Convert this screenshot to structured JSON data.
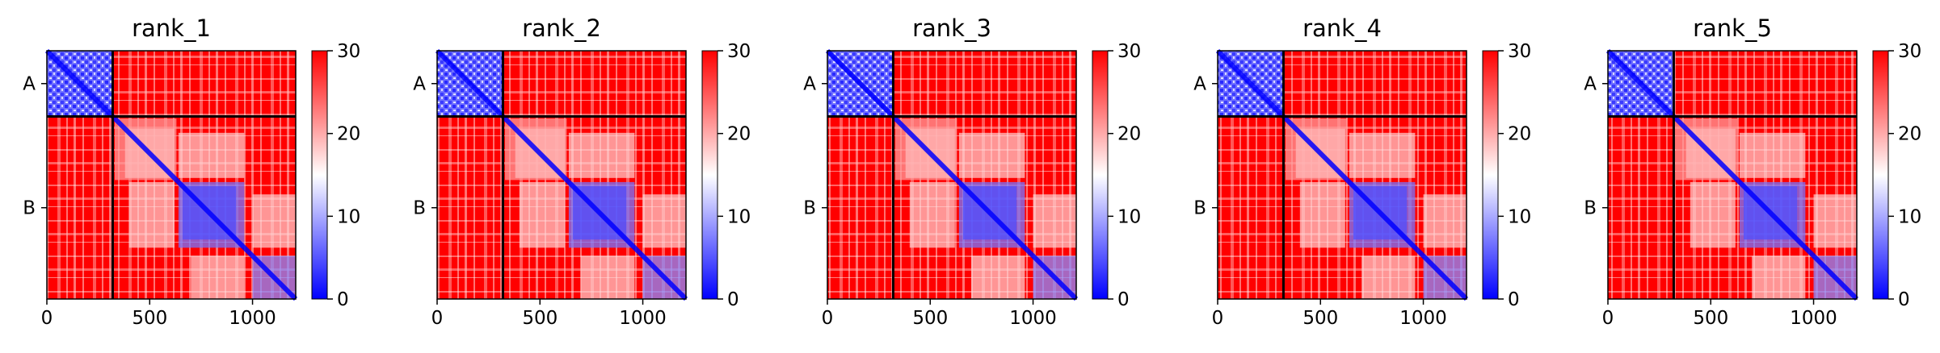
{
  "chart_data": [
    {
      "type": "heatmap",
      "title": "rank_1",
      "xlim": [
        0,
        1210
      ],
      "x_ticks": [
        "0",
        "500",
        "1000"
      ],
      "y_labels": [
        "A",
        "B"
      ],
      "chain_boundary": 320,
      "colorbar": {
        "min": 0,
        "max": 30,
        "ticks": [
          "0",
          "10",
          "20",
          "30"
        ],
        "colors": [
          "#0000ff",
          "#ffffff",
          "#ff0000"
        ]
      }
    },
    {
      "type": "heatmap",
      "title": "rank_2",
      "xlim": [
        0,
        1210
      ],
      "x_ticks": [
        "0",
        "500",
        "1000"
      ],
      "y_labels": [
        "A",
        "B"
      ],
      "chain_boundary": 320,
      "colorbar": {
        "min": 0,
        "max": 30,
        "ticks": [
          "0",
          "10",
          "20",
          "30"
        ],
        "colors": [
          "#0000ff",
          "#ffffff",
          "#ff0000"
        ]
      }
    },
    {
      "type": "heatmap",
      "title": "rank_3",
      "xlim": [
        0,
        1210
      ],
      "x_ticks": [
        "0",
        "500",
        "1000"
      ],
      "y_labels": [
        "A",
        "B"
      ],
      "chain_boundary": 320,
      "colorbar": {
        "min": 0,
        "max": 30,
        "ticks": [
          "0",
          "10",
          "20",
          "30"
        ],
        "colors": [
          "#0000ff",
          "#ffffff",
          "#ff0000"
        ]
      }
    },
    {
      "type": "heatmap",
      "title": "rank_4",
      "xlim": [
        0,
        1210
      ],
      "x_ticks": [
        "0",
        "500",
        "1000"
      ],
      "y_labels": [
        "A",
        "B"
      ],
      "chain_boundary": 320,
      "colorbar": {
        "min": 0,
        "max": 30,
        "ticks": [
          "0",
          "10",
          "20",
          "30"
        ],
        "colors": [
          "#0000ff",
          "#ffffff",
          "#ff0000"
        ]
      }
    },
    {
      "type": "heatmap",
      "title": "rank_5",
      "xlim": [
        0,
        1210
      ],
      "x_ticks": [
        "0",
        "500",
        "1000"
      ],
      "y_labels": [
        "A",
        "B"
      ],
      "chain_boundary": 320,
      "colorbar": {
        "min": 0,
        "max": 30,
        "ticks": [
          "0",
          "10",
          "20",
          "30"
        ],
        "colors": [
          "#0000ff",
          "#ffffff",
          "#ff0000"
        ]
      }
    }
  ]
}
